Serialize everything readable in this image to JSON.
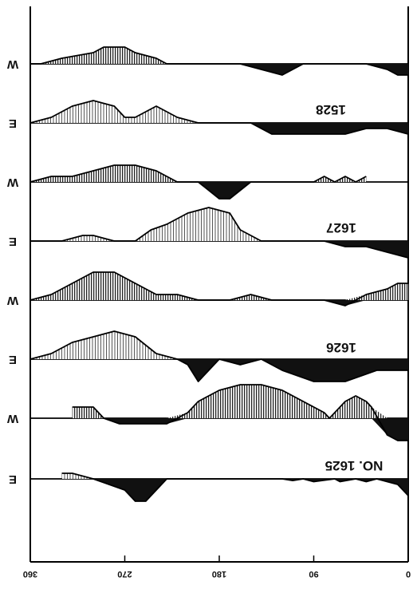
{
  "chart_data": {
    "type": "line",
    "title": "",
    "xlabel": "",
    "ylabel": "",
    "orientation": "rotated-180",
    "xlim": [
      0,
      360
    ],
    "x_ticks": [
      "0",
      "90",
      "180",
      "270",
      "360"
    ],
    "panels": [
      {
        "name": "NO. 1625",
        "rows": [
          {
            "side": "E",
            "points": [
              [
                0,
                -3
              ],
              [
                10,
                -1
              ],
              [
                20,
                -0.5
              ],
              [
                30,
                0
              ],
              [
                40,
                -0.5
              ],
              [
                50,
                0
              ],
              [
                65,
                -0.5
              ],
              [
                70,
                0
              ],
              [
                90,
                -0.5
              ],
              [
                100,
                0
              ],
              [
                110,
                -0.3
              ],
              [
                120,
                0
              ],
              [
                140,
                0
              ],
              [
                150,
                0
              ],
              [
                160,
                0
              ],
              [
                170,
                0
              ],
              [
                180,
                0
              ],
              [
                200,
                0
              ],
              [
                210,
                0
              ],
              [
                230,
                0
              ],
              [
                250,
                -4
              ],
              [
                260,
                -4
              ],
              [
                270,
                -2
              ],
              [
                300,
                0
              ],
              [
                320,
                1
              ],
              [
                330,
                1
              ]
            ]
          },
          {
            "side": "W",
            "points": [
              [
                0,
                -4
              ],
              [
                10,
                -4
              ],
              [
                20,
                -3
              ],
              [
                35,
                2
              ],
              [
                40,
                3
              ],
              [
                50,
                4
              ],
              [
                60,
                3
              ],
              [
                75,
                0
              ],
              [
                80,
                1
              ],
              [
                90,
                2
              ],
              [
                110,
                4
              ],
              [
                120,
                5
              ],
              [
                140,
                6
              ],
              [
                160,
                6
              ],
              [
                180,
                5
              ],
              [
                200,
                3
              ],
              [
                210,
                1
              ],
              [
                230,
                -1
              ],
              [
                260,
                -1
              ],
              [
                275,
                -1
              ],
              [
                290,
                0
              ],
              [
                300,
                2
              ],
              [
                320,
                2
              ]
            ]
          }
        ]
      },
      {
        "name": "1626",
        "rows": [
          {
            "side": "E",
            "points": [
              [
                0,
                -2
              ],
              [
                15,
                -2
              ],
              [
                30,
                -2
              ],
              [
                45,
                -3
              ],
              [
                60,
                -4
              ],
              [
                90,
                -4
              ],
              [
                120,
                -2
              ],
              [
                140,
                0
              ],
              [
                160,
                -1
              ],
              [
                180,
                0
              ],
              [
                200,
                -4
              ],
              [
                210,
                -1
              ],
              [
                220,
                0
              ],
              [
                240,
                1
              ],
              [
                260,
                4
              ],
              [
                280,
                5
              ],
              [
                300,
                4
              ],
              [
                320,
                3
              ],
              [
                340,
                1
              ],
              [
                360,
                0
              ]
            ]
          },
          {
            "side": "W",
            "points": [
              [
                0,
                3
              ],
              [
                10,
                3
              ],
              [
                20,
                2
              ],
              [
                40,
                1
              ],
              [
                60,
                -1
              ],
              [
                80,
                0
              ],
              [
                90,
                0
              ],
              [
                100,
                0
              ],
              [
                130,
                0
              ],
              [
                150,
                1
              ],
              [
                170,
                0
              ],
              [
                180,
                0
              ],
              [
                200,
                0
              ],
              [
                220,
                1
              ],
              [
                240,
                1
              ],
              [
                260,
                3
              ],
              [
                280,
                5
              ],
              [
                300,
                5
              ],
              [
                320,
                3
              ],
              [
                340,
                1
              ],
              [
                360,
                0
              ]
            ]
          }
        ]
      },
      {
        "name": "1627",
        "rows": [
          {
            "side": "E",
            "points": [
              [
                0,
                -3
              ],
              [
                20,
                -2
              ],
              [
                40,
                -1
              ],
              [
                60,
                -1
              ],
              [
                80,
                0
              ],
              [
                100,
                0
              ],
              [
                120,
                0
              ],
              [
                140,
                0
              ],
              [
                160,
                2
              ],
              [
                170,
                5
              ],
              [
                190,
                6
              ],
              [
                210,
                5
              ],
              [
                230,
                3
              ],
              [
                245,
                2
              ],
              [
                260,
                0
              ],
              [
                280,
                0
              ],
              [
                300,
                1
              ],
              [
                310,
                1
              ],
              [
                330,
                0
              ],
              [
                350,
                0
              ],
              [
                360,
                0
              ]
            ]
          },
          {
            "side": "W",
            "points": [
              [
                40,
                1
              ],
              [
                50,
                0
              ],
              [
                60,
                1
              ],
              [
                70,
                0
              ],
              [
                80,
                1
              ],
              [
                90,
                0
              ],
              [
                100,
                0
              ],
              [
                130,
                0
              ],
              [
                150,
                0
              ],
              [
                170,
                -3
              ],
              [
                180,
                -3
              ],
              [
                200,
                0
              ],
              [
                220,
                0
              ],
              [
                240,
                2
              ],
              [
                260,
                3
              ],
              [
                280,
                3
              ],
              [
                300,
                2
              ],
              [
                320,
                1
              ],
              [
                340,
                1
              ],
              [
                360,
                0
              ]
            ]
          }
        ]
      },
      {
        "name": "1528",
        "rows": [
          {
            "side": "E",
            "points": [
              [
                0,
                -2
              ],
              [
                20,
                -1
              ],
              [
                40,
                -1
              ],
              [
                60,
                -2
              ],
              [
                80,
                -2
              ],
              [
                100,
                -2
              ],
              [
                110,
                -2
              ],
              [
                130,
                -2
              ],
              [
                140,
                -1
              ],
              [
                150,
                0
              ],
              [
                170,
                0
              ],
              [
                200,
                0
              ],
              [
                220,
                1
              ],
              [
                240,
                3
              ],
              [
                260,
                1
              ],
              [
                270,
                1
              ],
              [
                280,
                3
              ],
              [
                300,
                4
              ],
              [
                320,
                3
              ],
              [
                340,
                1
              ],
              [
                360,
                0
              ]
            ]
          },
          {
            "side": "W",
            "points": [
              [
                0,
                -2
              ],
              [
                10,
                -2
              ],
              [
                20,
                -1
              ],
              [
                40,
                0
              ],
              [
                60,
                0
              ],
              [
                80,
                0
              ],
              [
                100,
                0
              ],
              [
                120,
                -2
              ],
              [
                140,
                -1
              ],
              [
                160,
                0
              ],
              [
                180,
                0
              ],
              [
                200,
                0
              ],
              [
                220,
                0
              ],
              [
                230,
                0
              ],
              [
                240,
                1
              ],
              [
                260,
                2
              ],
              [
                270,
                3
              ],
              [
                280,
                3
              ],
              [
                290,
                3
              ],
              [
                300,
                2
              ],
              [
                330,
                1
              ],
              [
                350,
                0
              ],
              [
                360,
                0
              ]
            ]
          }
        ]
      }
    ],
    "labels": [
      "1528",
      "1627",
      "1626",
      "NO. 1625"
    ],
    "side_labels": [
      "W",
      "E",
      "W",
      "E",
      "W",
      "E",
      "W",
      "E"
    ]
  }
}
